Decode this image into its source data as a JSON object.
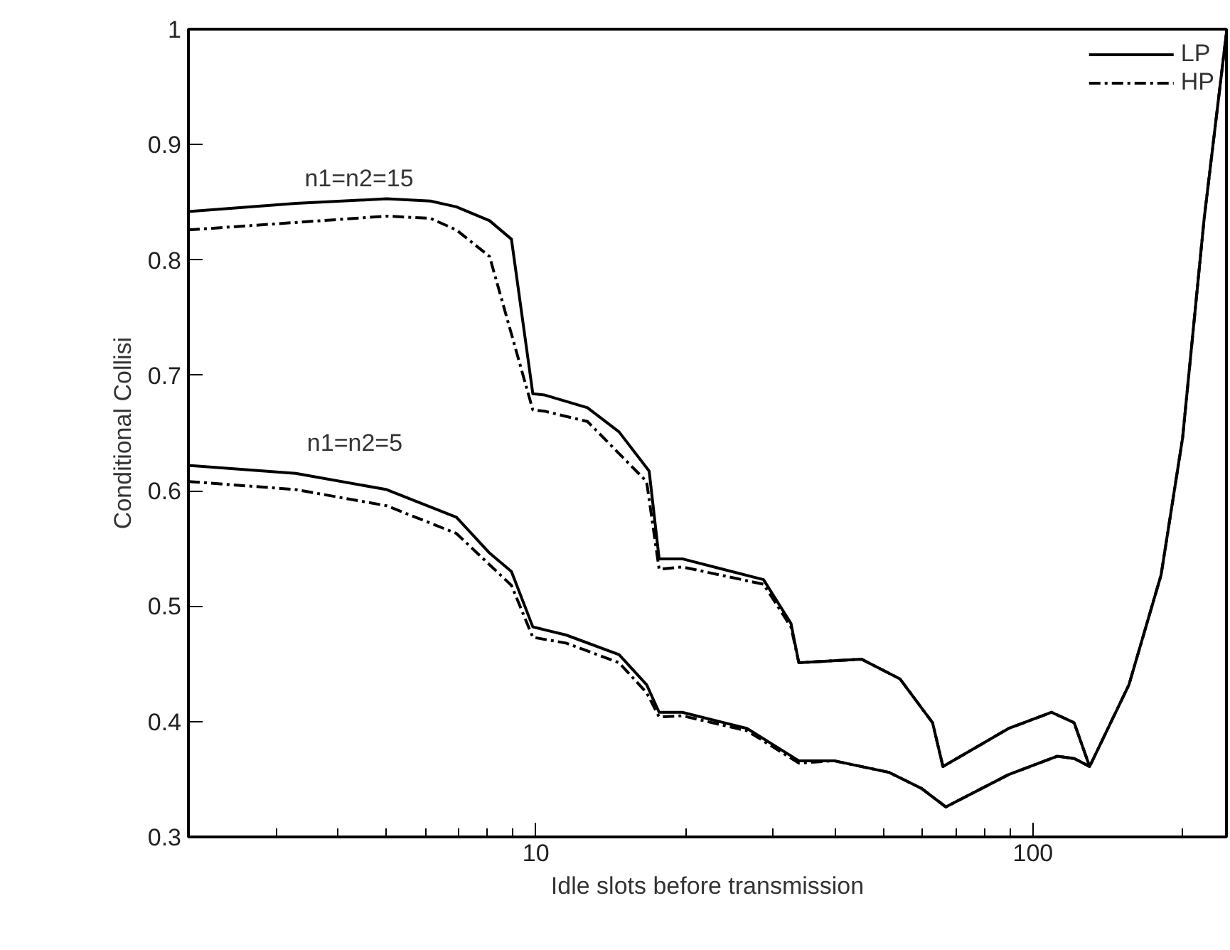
{
  "chart_data": {
    "type": "line",
    "xlabel": "Idle slots before transmission",
    "ylabel": "Conditional Collisi",
    "log": "x",
    "xlim": [
      2,
      245
    ],
    "ylim": [
      0.3,
      1
    ],
    "xticks": [
      {
        "value": 3,
        "label": null
      },
      {
        "value": 4,
        "label": null
      },
      {
        "value": 5,
        "label": null
      },
      {
        "value": 6,
        "label": null
      },
      {
        "value": 7,
        "label": null
      },
      {
        "value": 8,
        "label": null
      },
      {
        "value": 9,
        "label": null
      },
      10,
      {
        "value": 20,
        "label": null
      },
      {
        "value": 30,
        "label": null
      },
      {
        "value": 40,
        "label": null
      },
      {
        "value": 50,
        "label": null
      },
      {
        "value": 60,
        "label": null
      },
      {
        "value": 70,
        "label": null
      },
      {
        "value": 80,
        "label": null
      },
      {
        "value": 90,
        "label": null
      },
      100,
      {
        "value": 200,
        "label": null
      }
    ],
    "yticks": [
      1,
      0.9,
      0.8,
      0.7,
      0.6,
      0.5,
      0.4,
      0.3
    ],
    "grid": false,
    "legend": "top right",
    "marker": "none",
    "annotations": [
      "n1=n2=15",
      "n1=n2=5"
    ],
    "series": [
      {
        "name": "LP",
        "color": "#000000",
        "line_style": "solid",
        "x": [
          2.0,
          3.29,
          5.01,
          6.14,
          6.92,
          8.07,
          8.93,
          9.86,
          10.4,
          12.7,
          14.7,
          16.9,
          17.7,
          19.7,
          28.7,
          32.6,
          33.8,
          45.2,
          54.0,
          62.8,
          65.9,
          89.3,
          109,
          121,
          130,
          156,
          181,
          200,
          221,
          245
        ],
        "values": [
          0.842,
          0.849,
          0.853,
          0.851,
          0.846,
          0.834,
          0.818,
          0.684,
          0.683,
          0.672,
          0.651,
          0.617,
          0.541,
          0.541,
          0.523,
          0.485,
          0.451,
          0.454,
          0.437,
          0.399,
          0.361,
          0.394,
          0.408,
          0.399,
          0.361,
          0.432,
          0.527,
          0.646,
          0.836,
          0.997
        ]
      },
      {
        "name": "HP",
        "color": "#000000",
        "line_style": "dashed",
        "x": [
          2.0,
          5.01,
          6.14,
          6.92,
          8.07,
          9.86,
          10.4,
          12.7,
          16.7,
          17.7,
          19.7,
          28.7,
          32.6,
          33.8,
          45.2,
          54.0,
          62.8,
          65.9,
          89.3,
          109,
          121,
          130,
          156,
          181,
          200,
          221,
          245
        ],
        "values": [
          0.826,
          0.838,
          0.836,
          0.826,
          0.803,
          0.67,
          0.669,
          0.66,
          0.608,
          0.532,
          0.534,
          0.519,
          0.482,
          0.451,
          0.454,
          0.437,
          0.399,
          0.361,
          0.394,
          0.408,
          0.399,
          0.361,
          0.432,
          0.527,
          0.646,
          0.836,
          0.997
        ]
      },
      {
        "color": "#000000",
        "line_style": "solid",
        "x": [
          2.0,
          3.29,
          5.01,
          6.92,
          8.07,
          8.93,
          9.86,
          11.5,
          14.7,
          16.7,
          17.7,
          19.7,
          26.6,
          33.8,
          39.8,
          51.3,
          59.7,
          66.8,
          89.3,
          112,
          121,
          130
        ],
        "values": [
          0.622,
          0.615,
          0.601,
          0.577,
          0.546,
          0.53,
          0.482,
          0.475,
          0.458,
          0.432,
          0.408,
          0.408,
          0.394,
          0.366,
          0.366,
          0.356,
          0.342,
          0.326,
          0.354,
          0.37,
          0.368,
          0.361
        ]
      },
      {
        "color": "#000000",
        "line_style": "dashed",
        "x": [
          2.0,
          3.29,
          5.01,
          6.92,
          8.93,
          9.86,
          11.5,
          14.7,
          16.7,
          17.7,
          19.7,
          26.6,
          33.8,
          39.8,
          51.3,
          59.7,
          66.8,
          89.3,
          112,
          121,
          130
        ],
        "values": [
          0.608,
          0.601,
          0.587,
          0.563,
          0.518,
          0.473,
          0.468,
          0.451,
          0.425,
          0.404,
          0.405,
          0.392,
          0.364,
          0.366,
          0.356,
          0.342,
          0.326,
          0.354,
          0.37,
          0.368,
          0.361
        ]
      }
    ]
  }
}
